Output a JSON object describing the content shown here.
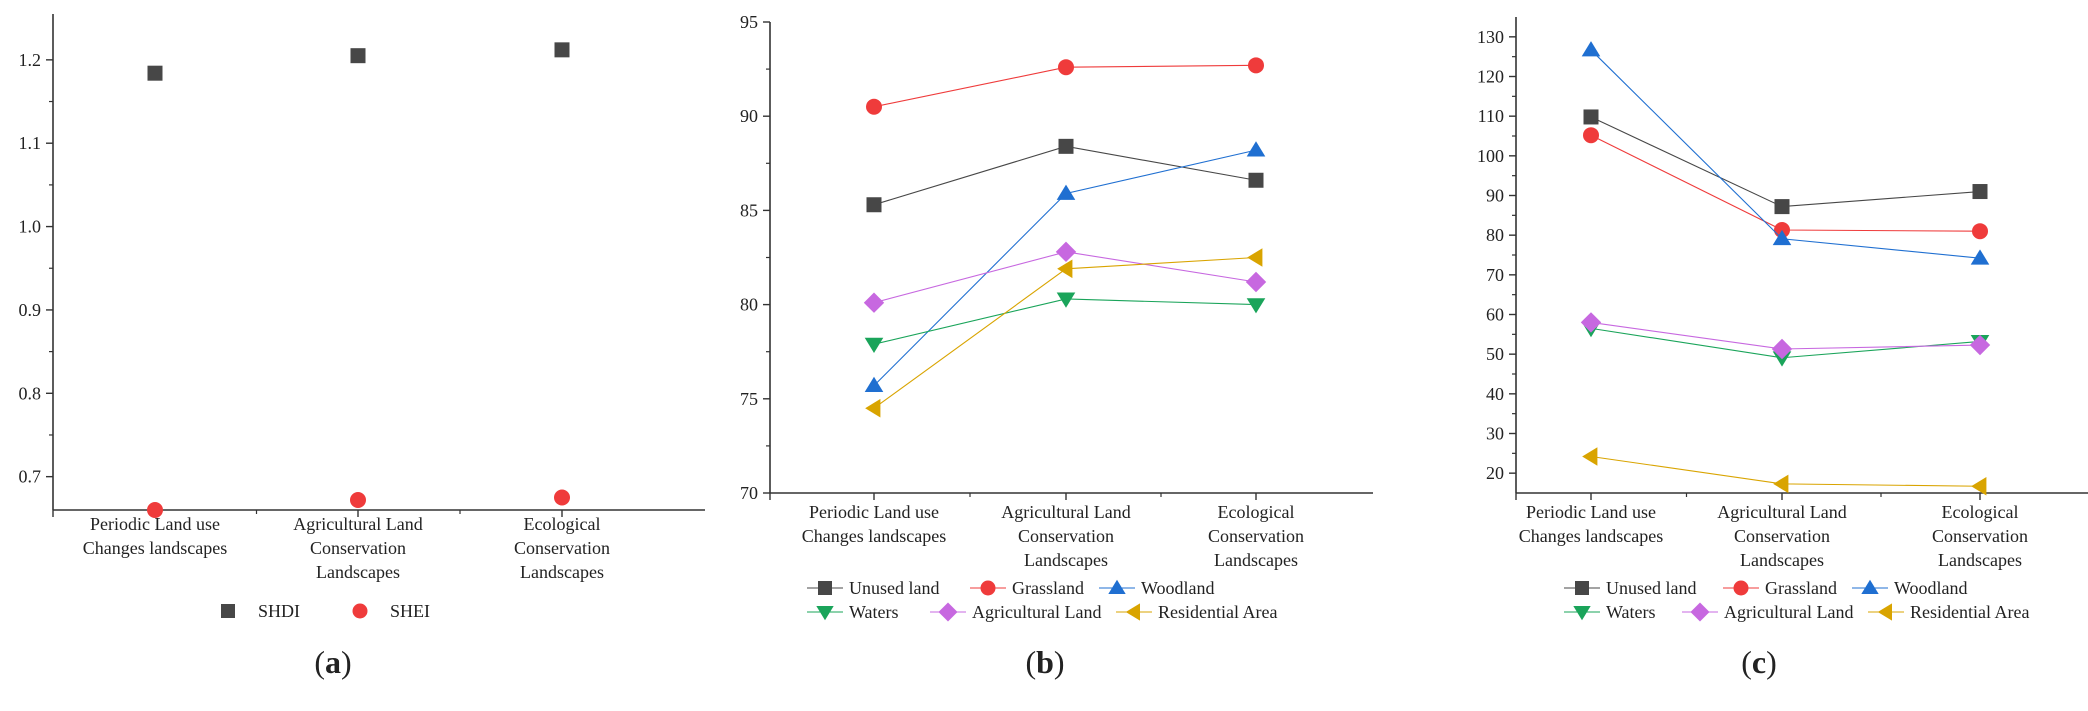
{
  "panels": [
    {
      "id": "a",
      "panel_label": "a",
      "y_ticks": [
        "0.7",
        "0.8",
        "0.9",
        "1.0",
        "1.1",
        "1.2"
      ],
      "categories": [
        [
          "Periodic Land use",
          "Changes landscapes"
        ],
        [
          "Agricultural Land",
          "Conservation",
          "Landscapes"
        ],
        [
          "Ecological",
          "Conservation",
          "Landscapes"
        ]
      ],
      "legend": [
        {
          "label": "SHDI"
        },
        {
          "label": "SHEI"
        }
      ]
    },
    {
      "id": "b",
      "panel_label": "b",
      "y_ticks": [
        "70",
        "75",
        "80",
        "85",
        "90",
        "95"
      ],
      "categories": [
        [
          "Periodic Land use",
          "Changes landscapes"
        ],
        [
          "Agricultural Land",
          "Conservation",
          "Landscapes"
        ],
        [
          "Ecological",
          "Conservation",
          "Landscapes"
        ]
      ],
      "legend": [
        {
          "label": "Unused land"
        },
        {
          "label": "Grassland"
        },
        {
          "label": "Woodland"
        },
        {
          "label": "Waters"
        },
        {
          "label": "Agricultural Land"
        },
        {
          "label": "Residential Area"
        }
      ]
    },
    {
      "id": "c",
      "panel_label": "c",
      "y_ticks": [
        "20",
        "30",
        "40",
        "50",
        "60",
        "70",
        "80",
        "90",
        "100",
        "110",
        "120",
        "130"
      ],
      "categories": [
        [
          "Periodic Land use",
          "Changes landscapes"
        ],
        [
          "Agricultural Land",
          "Conservation",
          "Landscapes"
        ],
        [
          "Ecological",
          "Conservation",
          "Landscapes"
        ]
      ],
      "legend": [
        {
          "label": "Unused land"
        },
        {
          "label": "Grassland"
        },
        {
          "label": "Woodland"
        },
        {
          "label": "Waters"
        },
        {
          "label": "Agricultural Land"
        },
        {
          "label": "Residential Area"
        }
      ]
    }
  ],
  "chart_data": [
    {
      "type": "scatter",
      "panel": "a",
      "categories": [
        "Periodic Land use Changes landscapes",
        "Agricultural Land Conservation Landscapes",
        "Ecological Conservation Landscapes"
      ],
      "ylim": [
        0.66,
        1.255
      ],
      "series": [
        {
          "name": "SHDI",
          "marker": "square",
          "color": "#474747",
          "values": [
            1.184,
            1.205,
            1.212
          ]
        },
        {
          "name": "SHEI",
          "marker": "circle",
          "color": "#ef3b3b",
          "values": [
            0.66,
            0.672,
            0.675
          ]
        }
      ]
    },
    {
      "type": "line",
      "panel": "b",
      "categories": [
        "Periodic Land use Changes landscapes",
        "Agricultural Land Conservation Landscapes",
        "Ecological Conservation Landscapes"
      ],
      "ylim": [
        70,
        95
      ],
      "series": [
        {
          "name": "Unused land",
          "marker": "square",
          "color": "#474747",
          "values": [
            85.3,
            88.4,
            86.6
          ]
        },
        {
          "name": "Grassland",
          "marker": "circle",
          "color": "#ef3b3b",
          "values": [
            90.5,
            92.6,
            92.7
          ]
        },
        {
          "name": "Woodland",
          "marker": "triangle-up",
          "color": "#1f6fd1",
          "values": [
            75.7,
            85.9,
            88.2
          ]
        },
        {
          "name": "Waters",
          "marker": "triangle-down",
          "color": "#1aa45a",
          "values": [
            77.9,
            80.3,
            80.0
          ]
        },
        {
          "name": "Agricultural Land",
          "marker": "diamond",
          "color": "#c768e0",
          "values": [
            80.1,
            82.8,
            81.2
          ]
        },
        {
          "name": "Residential Area",
          "marker": "triangle-left",
          "color": "#d9a400",
          "values": [
            74.5,
            81.9,
            82.5
          ]
        }
      ]
    },
    {
      "type": "line",
      "panel": "c",
      "categories": [
        "Periodic Land use Changes landscapes",
        "Agricultural Land Conservation Landscapes",
        "Ecological Conservation Landscapes"
      ],
      "ylim": [
        15,
        135
      ],
      "series": [
        {
          "name": "Unused land",
          "marker": "square",
          "color": "#474747",
          "values": [
            109.8,
            87.2,
            91.0
          ]
        },
        {
          "name": "Grassland",
          "marker": "circle",
          "color": "#ef3b3b",
          "values": [
            105.2,
            81.3,
            81.0
          ]
        },
        {
          "name": "Woodland",
          "marker": "triangle-up",
          "color": "#1f6fd1",
          "values": [
            126.7,
            79.1,
            74.2
          ]
        },
        {
          "name": "Waters",
          "marker": "triangle-down",
          "color": "#1aa45a",
          "values": [
            56.5,
            49.1,
            53.2
          ]
        },
        {
          "name": "Agricultural Land",
          "marker": "diamond",
          "color": "#c768e0",
          "values": [
            58.0,
            51.3,
            52.3
          ]
        },
        {
          "name": "Residential Area",
          "marker": "triangle-left",
          "color": "#d9a400",
          "values": [
            24.2,
            17.3,
            16.7
          ]
        }
      ]
    }
  ]
}
